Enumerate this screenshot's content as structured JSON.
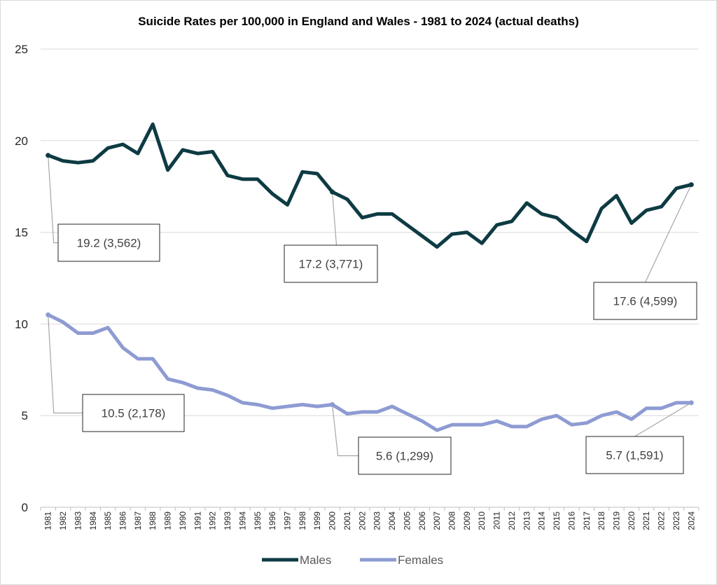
{
  "chart_data": {
    "type": "line",
    "title": "Suicide Rates per 100,000 in England and Wales - 1981 to 2024 (actual deaths)",
    "xlabel": "",
    "ylabel": "",
    "ylim": [
      0,
      25
    ],
    "yticks": [
      0,
      5,
      10,
      15,
      20,
      25
    ],
    "grid": true,
    "legend_position": "bottom",
    "categories": [
      "1981",
      "1982",
      "1983",
      "1984",
      "1985",
      "1986",
      "1987",
      "1988",
      "1989",
      "1990",
      "1991",
      "1992",
      "1993",
      "1994",
      "1995",
      "1996",
      "1997",
      "1998",
      "1999",
      "2000",
      "2001",
      "2002",
      "2003",
      "2004",
      "2005",
      "2006",
      "2007",
      "2008",
      "2009",
      "2010",
      "2011",
      "2012",
      "2013",
      "2014",
      "2015",
      "2016",
      "2017",
      "2018",
      "2019",
      "2020",
      "2021",
      "2022",
      "2023",
      "2024"
    ],
    "series": [
      {
        "name": "Males",
        "color": "#0e3b43",
        "values": [
          19.2,
          18.9,
          18.8,
          18.9,
          19.6,
          19.8,
          19.3,
          20.9,
          18.4,
          19.5,
          19.3,
          19.4,
          18.1,
          17.9,
          17.9,
          17.1,
          16.5,
          18.3,
          18.2,
          17.2,
          16.8,
          15.8,
          16.0,
          16.0,
          15.4,
          14.8,
          14.2,
          14.9,
          15.0,
          14.4,
          15.4,
          15.6,
          16.6,
          16.0,
          15.8,
          15.1,
          14.5,
          16.3,
          17.0,
          15.5,
          16.2,
          16.4,
          17.4,
          17.6
        ]
      },
      {
        "name": "Females",
        "color": "#8e9bd3",
        "values": [
          10.5,
          10.1,
          9.5,
          9.5,
          9.8,
          8.7,
          8.1,
          8.1,
          7.0,
          6.8,
          6.5,
          6.4,
          6.1,
          5.7,
          5.6,
          5.4,
          5.5,
          5.6,
          5.5,
          5.6,
          5.1,
          5.2,
          5.2,
          5.5,
          5.1,
          4.7,
          4.2,
          4.5,
          4.5,
          4.5,
          4.7,
          4.4,
          4.4,
          4.8,
          5.0,
          4.5,
          4.6,
          5.0,
          5.2,
          4.8,
          5.4,
          5.4,
          5.7,
          5.7
        ]
      }
    ],
    "annotations": [
      {
        "series": "Males",
        "year": "1981",
        "text": "19.2 (3,562)"
      },
      {
        "series": "Males",
        "year": "2000",
        "text": "17.2 (3,771)"
      },
      {
        "series": "Males",
        "year": "2024",
        "text": "17.6 (4,599)"
      },
      {
        "series": "Females",
        "year": "1981",
        "text": "10.5 (2,178)"
      },
      {
        "series": "Females",
        "year": "2000",
        "text": "5.6 (1,299)"
      },
      {
        "series": "Females",
        "year": "2024",
        "text": "5.7 (1,591)"
      }
    ]
  }
}
